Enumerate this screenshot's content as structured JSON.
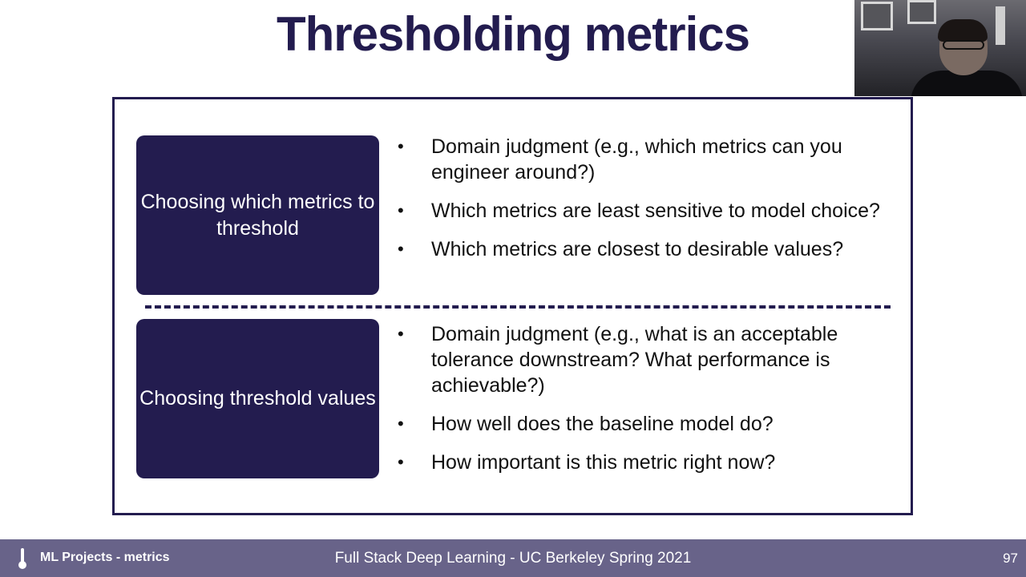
{
  "slide": {
    "title": "Thresholding metrics",
    "sections": [
      {
        "label": "Choosing which metrics to threshold",
        "bullets": [
          "Domain judgment (e.g., which metrics can you engineer around?)",
          "Which metrics are least sensitive to model choice?",
          "Which metrics are closest to desirable values?"
        ]
      },
      {
        "label": "Choosing threshold values",
        "bullets": [
          "Domain judgment (e.g., what is an acceptable tolerance downstream? What performance is achievable?)",
          "How well does the baseline model do?",
          "How important is this metric right now?"
        ]
      }
    ],
    "bullet_glyph": "•"
  },
  "footer": {
    "section_label": "ML Projects - metrics",
    "course": "Full Stack Deep Learning - UC Berkeley Spring 2021",
    "page_number": "97",
    "icon": "thermometer-icon"
  },
  "webcam": {
    "icon": "webcam-video"
  },
  "colors": {
    "accent": "#231c4f",
    "footer": "#686389"
  }
}
